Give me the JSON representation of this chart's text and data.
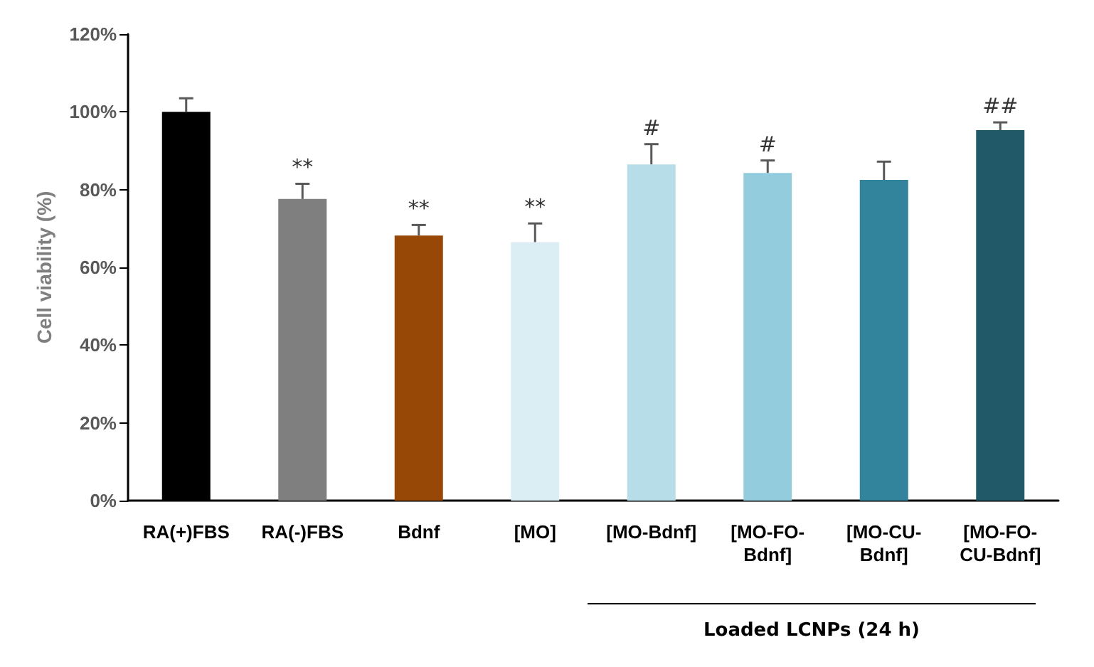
{
  "chart_data": {
    "type": "bar",
    "ylabel": "Cell viability (%)",
    "categories": [
      "RA(+)FBS",
      "RA(-)FBS",
      "Bdnf",
      "[MO]",
      "[MO-Bdnf]",
      "[MO-FO-Bdnf]",
      "[MO-CU-Bdnf]",
      "[MO-FO-CU-Bdnf]"
    ],
    "values": [
      100,
      77.6,
      68.2,
      66.5,
      86.5,
      84.3,
      82.5,
      95.3
    ],
    "colors": [
      "#000000",
      "#7f7f7f",
      "#974706",
      "#daeef3",
      "#b7dee8",
      "#93cddd",
      "#31849b",
      "#215968"
    ],
    "errors": [
      [
        100,
        103.5
      ],
      [
        77.6,
        81.5
      ],
      [
        68.2,
        70.9
      ],
      [
        66.5,
        71.3
      ],
      [
        86.5,
        91.7
      ],
      [
        84.3,
        87.5
      ],
      [
        82.5,
        87.2
      ],
      [
        95.3,
        97.3
      ]
    ],
    "ylim": [
      0,
      120
    ],
    "yticks": [
      {
        "value": 0,
        "label": "0%"
      },
      {
        "value": 20,
        "label": "20%"
      },
      {
        "value": 40,
        "label": "40%"
      },
      {
        "value": 60,
        "label": "60%"
      },
      {
        "value": 80,
        "label": "80%"
      },
      {
        "value": 100,
        "label": "100%"
      },
      {
        "value": 120,
        "label": "120%"
      }
    ],
    "grid": false,
    "annotations": [
      {
        "text": "**",
        "x": "RA(-)FBS",
        "y": 81.5
      },
      {
        "text": "**",
        "x": "Bdnf",
        "y": 70.9
      },
      {
        "text": "**",
        "x": "[MO]",
        "y": 71.3
      },
      {
        "text": "#",
        "x": "[MO-Bdnf]",
        "y": 91.7
      },
      {
        "text": "#",
        "x": "[MO-FO-Bdnf]",
        "y": 87.5
      },
      {
        "text": "##",
        "x": "[MO-FO-CU-Bdnf]",
        "y": 97.3
      },
      "Loaded LCNPs (24 h)"
    ]
  }
}
